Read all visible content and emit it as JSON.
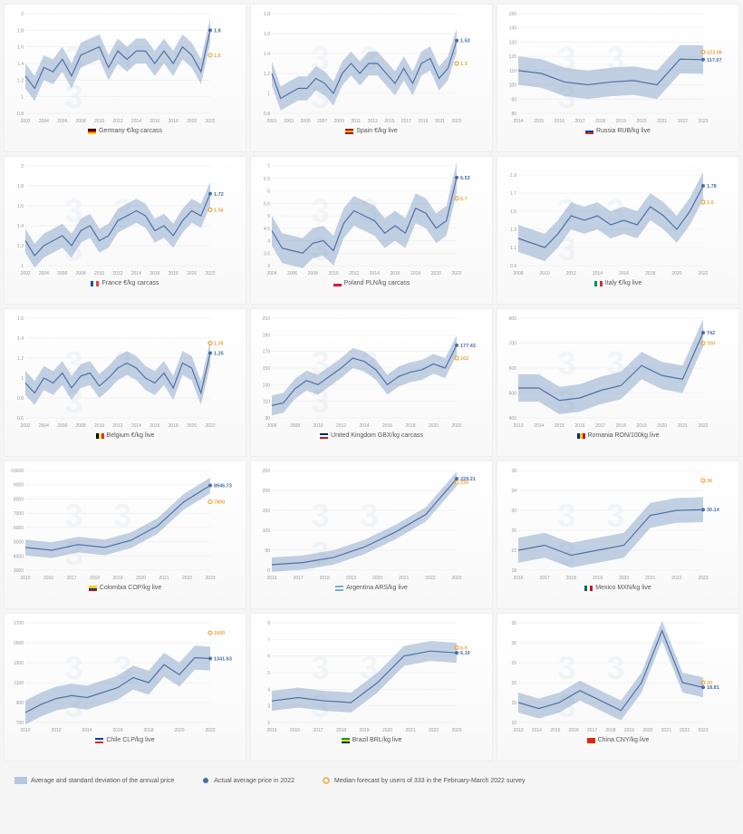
{
  "colors": {
    "area": "#7a9ac4",
    "line": "#5070a5",
    "actual": "#4a6da7",
    "forecast": "#e8a845",
    "grid": "#e8e8e8",
    "bg_top": "#ffffff",
    "bg_bottom": "#f8f8f8"
  },
  "legend": {
    "avg": "Average and standard deviation of the annual price",
    "actual": "Actual average price in 2022",
    "forecast": "Median forecast by users of 333 in the February-March 2022 survey"
  },
  "charts": [
    {
      "title": "Germany  €/kg carcass",
      "flag": [
        "#000",
        "#dd0000",
        "#ffce00"
      ],
      "xYears": [
        2002,
        2004,
        2006,
        2008,
        2010,
        2012,
        2014,
        2016,
        2018,
        2020,
        2022
      ],
      "y": {
        "min": 0.8,
        "max": 2.0,
        "ticks": [
          0.8,
          1.0,
          1.2,
          1.4,
          1.6,
          1.8,
          2.0
        ]
      },
      "series": [
        1.25,
        1.1,
        1.35,
        1.3,
        1.45,
        1.25,
        1.5,
        1.55,
        1.6,
        1.35,
        1.55,
        1.45,
        1.55,
        1.55,
        1.4,
        1.55,
        1.4,
        1.6,
        1.5,
        1.3,
        1.8
      ],
      "sd": 0.15,
      "actual": 1.8,
      "forecast": 1.5
    },
    {
      "title": "Spain  €/kg live",
      "flag": [
        "#aa151b",
        "#f1bf00",
        "#aa151b"
      ],
      "xYears": [
        2001,
        2003,
        2005,
        2007,
        2009,
        2011,
        2013,
        2015,
        2017,
        2019,
        2021,
        2023
      ],
      "y": {
        "min": 0.8,
        "max": 1.8,
        "ticks": [
          0.8,
          1.0,
          1.2,
          1.4,
          1.6,
          1.8
        ]
      },
      "series": [
        1.2,
        0.95,
        1.0,
        1.05,
        1.05,
        1.15,
        1.1,
        1.0,
        1.2,
        1.3,
        1.2,
        1.3,
        1.3,
        1.2,
        1.1,
        1.25,
        1.1,
        1.3,
        1.35,
        1.15,
        1.25,
        1.53
      ],
      "sd": 0.12,
      "actual": 1.53,
      "forecast": 1.3
    },
    {
      "title": "Russia RUB/kg live",
      "flag": [
        "#fff",
        "#0039a6",
        "#d52b1e"
      ],
      "xYears": [
        2014,
        2015,
        2016,
        2017,
        2018,
        2019,
        2020,
        2021,
        2022,
        2023
      ],
      "y": {
        "min": 80,
        "max": 150,
        "ticks": [
          80,
          90,
          100,
          110,
          120,
          130,
          140,
          150
        ]
      },
      "series": [
        110,
        108,
        102,
        100,
        102,
        103,
        100,
        118,
        117.67
      ],
      "sd": 10,
      "actual": 117.67,
      "forecast": 123.06
    },
    {
      "title": "France  €/kg carcass",
      "flag": [
        "#0055a4",
        "#fff",
        "#ef4135"
      ],
      "flagDir": "v",
      "xYears": [
        2002,
        2004,
        2006,
        2008,
        2010,
        2012,
        2014,
        2016,
        2018,
        2020,
        2022
      ],
      "y": {
        "min": 1.0,
        "max": 2.0,
        "ticks": [
          1.0,
          1.2,
          1.4,
          1.6,
          1.8,
          2.0
        ]
      },
      "series": [
        1.25,
        1.1,
        1.2,
        1.25,
        1.3,
        1.2,
        1.35,
        1.4,
        1.25,
        1.3,
        1.45,
        1.5,
        1.55,
        1.5,
        1.35,
        1.4,
        1.3,
        1.45,
        1.55,
        1.5,
        1.72
      ],
      "sd": 0.12,
      "actual": 1.72,
      "forecast": 1.56
    },
    {
      "title": "Poland  PLN/kg carcass",
      "flag": [
        "#fff",
        "#dc143c"
      ],
      "xYears": [
        2004,
        2006,
        2008,
        2010,
        2012,
        2014,
        2016,
        2018,
        2020,
        2022
      ],
      "y": {
        "min": 3.0,
        "max": 7.0,
        "ticks": [
          3.0,
          3.5,
          4.0,
          4.5,
          5.0,
          5.5,
          6.0,
          6.5,
          7.0
        ]
      },
      "series": [
        4.4,
        3.7,
        3.6,
        3.5,
        3.9,
        4.0,
        3.6,
        4.7,
        5.2,
        5.0,
        4.8,
        4.3,
        4.6,
        4.3,
        5.3,
        5.1,
        4.5,
        4.8,
        6.53
      ],
      "sd": 0.6,
      "actual": 6.53,
      "forecast": 5.7
    },
    {
      "title": "Italy  €/kg live",
      "flag": [
        "#009246",
        "#fff",
        "#ce2b37"
      ],
      "flagDir": "v",
      "xYears": [
        2008,
        2010,
        2012,
        2014,
        2016,
        2018,
        2020,
        2022
      ],
      "y": {
        "min": 0.9,
        "max": 2.0,
        "ticks": [
          0.9,
          1.1,
          1.3,
          1.5,
          1.7,
          1.9
        ]
      },
      "series": [
        1.2,
        1.15,
        1.1,
        1.25,
        1.45,
        1.4,
        1.45,
        1.35,
        1.4,
        1.35,
        1.55,
        1.45,
        1.3,
        1.5,
        1.78
      ],
      "sd": 0.15,
      "actual": 1.78,
      "forecast": 1.6
    },
    {
      "title": "Belgium  €/kg live",
      "flag": [
        "#000",
        "#fae042",
        "#ed2939"
      ],
      "flagDir": "v",
      "xYears": [
        2002,
        2004,
        2006,
        2008,
        2010,
        2012,
        2014,
        2016,
        2018,
        2020,
        2022
      ],
      "y": {
        "min": 0.6,
        "max": 1.6,
        "ticks": [
          0.6,
          0.8,
          1.0,
          1.2,
          1.4,
          1.6
        ]
      },
      "series": [
        0.95,
        0.85,
        1.0,
        0.95,
        1.05,
        0.9,
        1.02,
        1.05,
        0.92,
        1.0,
        1.1,
        1.15,
        1.1,
        1.0,
        0.95,
        1.05,
        0.9,
        1.15,
        1.1,
        0.85,
        1.25
      ],
      "sd": 0.12,
      "actual": 1.25,
      "forecast": 1.35,
      "forecastAbove": true
    },
    {
      "title": "United Kingdom  GBX/kg carcass",
      "flag": [
        "#012169",
        "#fff",
        "#c8102e"
      ],
      "xYears": [
        2006,
        2008,
        2010,
        2012,
        2014,
        2016,
        2018,
        2020,
        2022
      ],
      "y": {
        "min": 90,
        "max": 210,
        "ticks": [
          90,
          110,
          130,
          150,
          170,
          190,
          210
        ]
      },
      "series": [
        105,
        108,
        125,
        135,
        130,
        140,
        150,
        162,
        158,
        148,
        130,
        140,
        145,
        148,
        155,
        150,
        177.43
      ],
      "sd": 12,
      "actual": 177.43,
      "forecast": 162.0
    },
    {
      "title": "Romania  RON/100kg live",
      "flag": [
        "#002b7f",
        "#fcd116",
        "#ce1126"
      ],
      "flagDir": "v",
      "xYears": [
        2013,
        2014,
        2015,
        2016,
        2017,
        2018,
        2019,
        2020,
        2021,
        2022
      ],
      "y": {
        "min": 400,
        "max": 800,
        "ticks": [
          400,
          500,
          600,
          700,
          800
        ]
      },
      "series": [
        520,
        520,
        470,
        480,
        510,
        530,
        610,
        570,
        555,
        742
      ],
      "sd": 55,
      "actual": 742,
      "forecast": 700
    },
    {
      "title": "Colombia  COP/kg live",
      "flag": [
        "#fcd116",
        "#003893",
        "#ce1126"
      ],
      "flagProp": [
        2,
        1,
        1
      ],
      "xYears": [
        2015,
        2016,
        2017,
        2018,
        2019,
        2020,
        2021,
        2022,
        2023
      ],
      "y": {
        "min": 3000,
        "max": 10000,
        "ticks": [
          3000,
          4000,
          5000,
          6000,
          7000,
          8000,
          9000,
          10000
        ]
      },
      "series": [
        4600,
        4400,
        4800,
        4600,
        5100,
        6100,
        7800,
        8946.73
      ],
      "sd": 550,
      "actual": 8946.73,
      "forecast": 7800
    },
    {
      "title": "Argentina  ARS/kg live",
      "flag": [
        "#74acdf",
        "#fff",
        "#74acdf"
      ],
      "xYears": [
        2016,
        2017,
        2018,
        2019,
        2020,
        2021,
        2022,
        2023
      ],
      "y": {
        "min": 0,
        "max": 250,
        "ticks": [
          0,
          50,
          100,
          150,
          200,
          250
        ]
      },
      "series": [
        14,
        19,
        32,
        58,
        95,
        140,
        229.21
      ],
      "sd": 18,
      "actual": 229.21,
      "forecast": 220
    },
    {
      "title": "Mexico  MXN/kg live",
      "flag": [
        "#006847",
        "#fff",
        "#ce1126"
      ],
      "flagDir": "v",
      "xYears": [
        2016,
        2017,
        2018,
        2019,
        2020,
        2021,
        2022,
        2023
      ],
      "y": {
        "min": 18,
        "max": 38,
        "ticks": [
          18,
          22,
          26,
          30,
          34,
          38
        ]
      },
      "series": [
        22,
        23,
        21,
        22,
        23,
        29,
        30,
        30.14
      ],
      "sd": 2.5,
      "actual": 30.14,
      "forecast": 36.0,
      "forecastAbove": true
    },
    {
      "title": "Chile  CLP/kg live",
      "flag": [
        "#0039a6",
        "#fff",
        "#d52b1e"
      ],
      "xYears": [
        2010,
        2012,
        2014,
        2016,
        2018,
        2020,
        2022
      ],
      "y": {
        "min": 700,
        "max": 1700,
        "ticks": [
          700,
          900,
          1100,
          1300,
          1500,
          1700
        ]
      },
      "series": [
        800,
        880,
        940,
        970,
        950,
        1000,
        1050,
        1150,
        1100,
        1280,
        1180,
        1350,
        1341.63
      ],
      "sd": 120,
      "actual": 1341.63,
      "forecast": 1600.0,
      "forecastAbove": true
    },
    {
      "title": "Brazil  BRL/kg live",
      "flag": [
        "#009b3a",
        "#fedf00",
        "#002776"
      ],
      "xYears": [
        2015,
        2016,
        2017,
        2018,
        2019,
        2020,
        2021,
        2022,
        2023
      ],
      "y": {
        "min": 2,
        "max": 8,
        "ticks": [
          2,
          3,
          4,
          5,
          6,
          7,
          8
        ]
      },
      "series": [
        3.3,
        3.5,
        3.3,
        3.2,
        4.4,
        6.0,
        6.3,
        6.19
      ],
      "sd": 0.6,
      "actual": 6.19,
      "forecast": 6.5,
      "forecastAbove": true
    },
    {
      "title": "China  CNY/kg live",
      "flag": [
        "#de2910",
        "#de2910"
      ],
      "xYears": [
        2013,
        2014,
        2015,
        2016,
        2017,
        2018,
        2019,
        2020,
        2021,
        2022,
        2023
      ],
      "y": {
        "min": 10,
        "max": 35,
        "ticks": [
          10,
          15,
          20,
          25,
          30,
          35
        ]
      },
      "series": [
        15,
        13.5,
        15,
        18,
        15.5,
        13,
        20,
        33,
        20,
        18.81
      ],
      "sd": 2.5,
      "actual": 18.81,
      "forecast": 20.0,
      "forecastAbove": true
    }
  ]
}
